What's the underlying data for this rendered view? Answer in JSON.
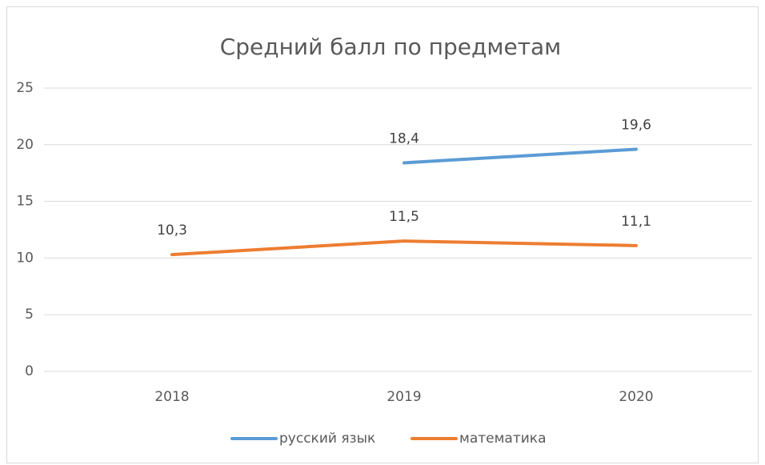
{
  "chart_data": {
    "type": "line",
    "title": "Средний балл по предметам",
    "categories": [
      "2018",
      "2019",
      "2020"
    ],
    "series": [
      {
        "name": "русский язык",
        "color": "#5b9bd5",
        "values": [
          null,
          18.4,
          19.6
        ],
        "value_labels": [
          null,
          "18,4",
          "19,6"
        ]
      },
      {
        "name": "математика",
        "color": "#ed7d31",
        "values": [
          10.3,
          11.5,
          11.1
        ],
        "value_labels": [
          "10,3",
          "11,5",
          "11,1"
        ]
      }
    ],
    "ylim": [
      0,
      25
    ],
    "yticks": [
      0,
      5,
      10,
      15,
      20,
      25
    ],
    "grid": true,
    "legend": "bottom"
  }
}
